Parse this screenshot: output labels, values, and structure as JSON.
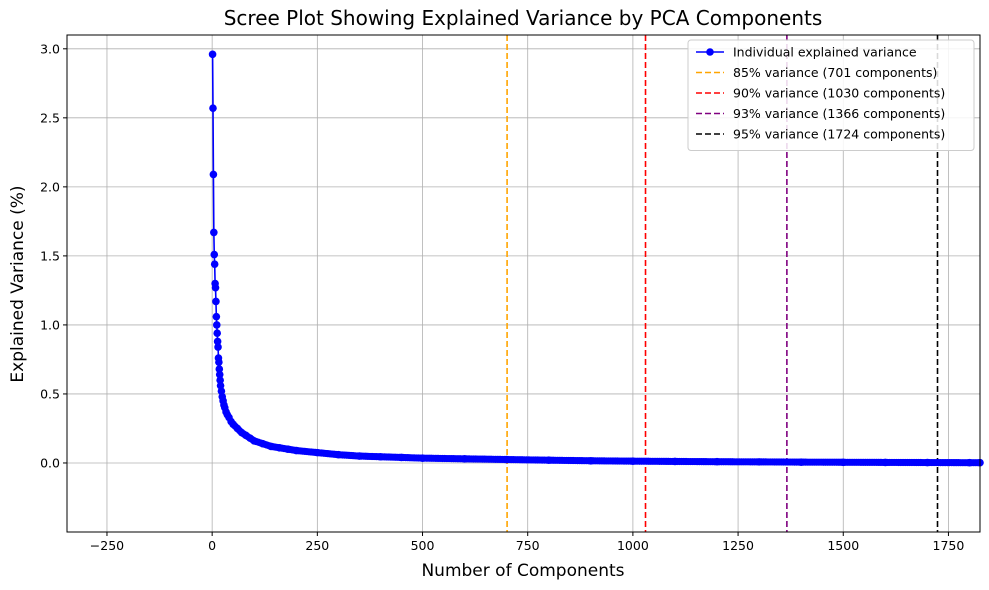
{
  "chart_data": {
    "type": "line",
    "title": "Scree Plot Showing Explained Variance by PCA Components",
    "xlabel": "Number of Components",
    "ylabel": "Explained Variance (%)",
    "xlim": [
      -345,
      1825
    ],
    "ylim": [
      -0.5,
      3.1
    ],
    "xticks": [
      -250,
      0,
      250,
      500,
      750,
      1000,
      1250,
      1500,
      1750
    ],
    "yticks": [
      0.0,
      0.5,
      1.0,
      1.5,
      2.0,
      2.5,
      3.0
    ],
    "xtick_labels": [
      "−250",
      "0",
      "250",
      "500",
      "750",
      "1000",
      "1250",
      "1500",
      "1750"
    ],
    "ytick_labels": [
      "0.0",
      "0.5",
      "1.0",
      "1.5",
      "2.0",
      "2.5",
      "3.0"
    ],
    "grid": true,
    "legend_position": "top-right",
    "series": [
      {
        "name": "Individual explained variance",
        "color": "#0000ff",
        "marker": "circle",
        "x": [
          1,
          2,
          3,
          4,
          5,
          6,
          7,
          8,
          9,
          10,
          11,
          12,
          13,
          14,
          15,
          16,
          17,
          18,
          19,
          20,
          22,
          24,
          26,
          28,
          30,
          33,
          36,
          40,
          45,
          50,
          60,
          70,
          80,
          90,
          100,
          120,
          140,
          160,
          180,
          200,
          250,
          300,
          350,
          400,
          450,
          500,
          600,
          700,
          800,
          900,
          1000,
          1100,
          1200,
          1300,
          1400,
          1500,
          1600,
          1700,
          1800,
          1825
        ],
        "values": [
          2.96,
          2.57,
          2.09,
          1.67,
          1.51,
          1.44,
          1.3,
          1.27,
          1.17,
          1.06,
          1.0,
          0.94,
          0.88,
          0.84,
          0.76,
          0.73,
          0.68,
          0.64,
          0.6,
          0.56,
          0.52,
          0.48,
          0.45,
          0.42,
          0.4,
          0.37,
          0.35,
          0.33,
          0.3,
          0.28,
          0.25,
          0.22,
          0.2,
          0.18,
          0.16,
          0.14,
          0.12,
          0.11,
          0.1,
          0.09,
          0.075,
          0.06,
          0.05,
          0.045,
          0.04,
          0.035,
          0.03,
          0.025,
          0.02,
          0.016,
          0.013,
          0.011,
          0.009,
          0.008,
          0.006,
          0.005,
          0.004,
          0.003,
          0.002,
          0.002
        ]
      }
    ],
    "thresholds": [
      {
        "label": "85% variance (701 components)",
        "x": 701,
        "color": "#ffa500"
      },
      {
        "label": "90% variance (1030 components)",
        "x": 1030,
        "color": "#ff0000"
      },
      {
        "label": "93% variance (1366 components)",
        "x": 1366,
        "color": "#800080"
      },
      {
        "label": "95% variance (1724 components)",
        "x": 1724,
        "color": "#000000"
      }
    ]
  }
}
